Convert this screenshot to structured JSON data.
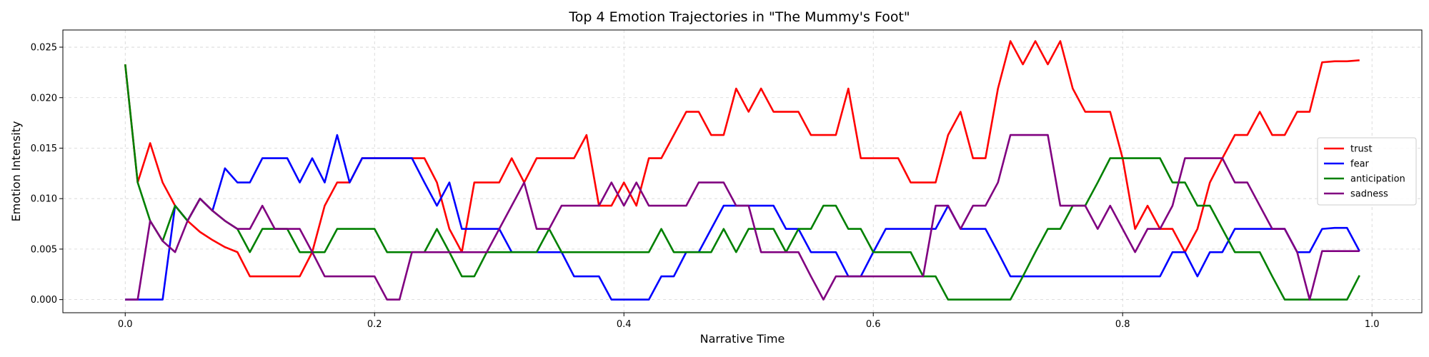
{
  "chart_data": {
    "type": "line",
    "title": "Top 4 Emotion Trajectories in \"The Mummy's Foot\"",
    "xlabel": "Narrative Time",
    "ylabel": "Emotion Intensity",
    "xlim": [
      -0.05,
      1.04
    ],
    "ylim": [
      -0.0013,
      0.0267
    ],
    "x_ticks": [
      0.0,
      0.2,
      0.4,
      0.6,
      0.8,
      1.0
    ],
    "x_tick_labels": [
      "0.0",
      "0.2",
      "0.4",
      "0.6",
      "0.8",
      "1.0"
    ],
    "y_ticks": [
      0.0,
      0.005,
      0.01,
      0.015,
      0.02,
      0.025
    ],
    "y_tick_labels": [
      "0.000",
      "0.005",
      "0.010",
      "0.015",
      "0.020",
      "0.025"
    ],
    "grid": true,
    "legend_position": "center-right",
    "x": [
      0.0,
      0.01,
      0.02,
      0.03,
      0.04,
      0.05,
      0.06,
      0.07,
      0.08,
      0.09,
      0.1,
      0.11,
      0.12,
      0.13,
      0.14,
      0.15,
      0.16,
      0.17,
      0.18,
      0.19,
      0.2,
      0.21,
      0.22,
      0.23,
      0.24,
      0.25,
      0.26,
      0.27,
      0.28,
      0.29,
      0.3,
      0.31,
      0.32,
      0.33,
      0.34,
      0.35,
      0.36,
      0.37,
      0.38,
      0.39,
      0.4,
      0.41,
      0.42,
      0.43,
      0.44,
      0.45,
      0.46,
      0.47,
      0.48,
      0.49,
      0.5,
      0.51,
      0.52,
      0.53,
      0.54,
      0.55,
      0.56,
      0.57,
      0.58,
      0.59,
      0.6,
      0.61,
      0.62,
      0.63,
      0.64,
      0.65,
      0.66,
      0.67,
      0.68,
      0.69,
      0.7,
      0.71,
      0.72,
      0.73,
      0.74,
      0.75,
      0.76,
      0.77,
      0.78,
      0.79,
      0.8,
      0.81,
      0.82,
      0.83,
      0.84,
      0.85,
      0.86,
      0.87,
      0.88,
      0.89,
      0.9,
      0.91,
      0.92,
      0.93,
      0.94,
      0.95,
      0.96,
      0.97,
      0.98,
      0.99
    ],
    "series": [
      {
        "name": "trust",
        "color": "#ff0000",
        "values": [
          0.0233,
          0.0116,
          0.0155,
          0.0116,
          0.0093,
          0.0078,
          0.0067,
          0.0059,
          0.0052,
          0.0047,
          0.0023,
          0.0023,
          0.0023,
          0.0023,
          0.0023,
          0.0047,
          0.0093,
          0.0116,
          0.0116,
          0.014,
          0.014,
          0.014,
          0.014,
          0.014,
          0.014,
          0.0116,
          0.007,
          0.0047,
          0.0116,
          0.0116,
          0.0116,
          0.014,
          0.0116,
          0.014,
          0.014,
          0.014,
          0.014,
          0.0163,
          0.0093,
          0.0093,
          0.0116,
          0.0093,
          0.014,
          0.014,
          0.0163,
          0.0186,
          0.0186,
          0.0163,
          0.0163,
          0.0209,
          0.0186,
          0.0209,
          0.0186,
          0.0186,
          0.0186,
          0.0163,
          0.0163,
          0.0163,
          0.0209,
          0.014,
          0.014,
          0.014,
          0.014,
          0.0116,
          0.0116,
          0.0116,
          0.0163,
          0.0186,
          0.014,
          0.014,
          0.0209,
          0.0256,
          0.0233,
          0.0256,
          0.0233,
          0.0256,
          0.0209,
          0.0186,
          0.0186,
          0.0186,
          0.014,
          0.007,
          0.0093,
          0.007,
          0.007,
          0.0047,
          0.007,
          0.0116,
          0.014,
          0.0163,
          0.0163,
          0.0186,
          0.0163,
          0.0163,
          0.0186,
          0.0186,
          0.0235,
          0.0236,
          0.0236,
          0.0237
        ]
      },
      {
        "name": "fear",
        "color": "#0000ff",
        "values": [
          0.0,
          0.0,
          0.0,
          0.0,
          0.0093,
          0.0078,
          0.01,
          0.0088,
          0.013,
          0.0116,
          0.0116,
          0.014,
          0.014,
          0.014,
          0.0116,
          0.014,
          0.0116,
          0.0163,
          0.0116,
          0.014,
          0.014,
          0.014,
          0.014,
          0.014,
          0.0116,
          0.0093,
          0.0116,
          0.007,
          0.007,
          0.007,
          0.007,
          0.0047,
          0.0047,
          0.0047,
          0.0047,
          0.0047,
          0.0023,
          0.0023,
          0.0023,
          0.0,
          0.0,
          0.0,
          0.0,
          0.0023,
          0.0023,
          0.0047,
          0.0047,
          0.007,
          0.0093,
          0.0093,
          0.0093,
          0.0093,
          0.0093,
          0.007,
          0.007,
          0.0047,
          0.0047,
          0.0047,
          0.0023,
          0.0023,
          0.0047,
          0.007,
          0.007,
          0.007,
          0.007,
          0.007,
          0.0093,
          0.007,
          0.007,
          0.007,
          0.0047,
          0.0023,
          0.0023,
          0.0023,
          0.0023,
          0.0023,
          0.0023,
          0.0023,
          0.0023,
          0.0023,
          0.0023,
          0.0023,
          0.0023,
          0.0023,
          0.0047,
          0.0047,
          0.0023,
          0.0047,
          0.0047,
          0.007,
          0.007,
          0.007,
          0.007,
          0.007,
          0.0047,
          0.0047,
          0.007,
          0.0071,
          0.0071,
          0.0048
        ]
      },
      {
        "name": "anticipation",
        "color": "#008000",
        "values": [
          0.0233,
          0.0116,
          0.0078,
          0.0058,
          0.0093,
          0.0078,
          0.01,
          0.0088,
          0.0078,
          0.007,
          0.0047,
          0.007,
          0.007,
          0.007,
          0.0047,
          0.0047,
          0.0047,
          0.007,
          0.007,
          0.007,
          0.007,
          0.0047,
          0.0047,
          0.0047,
          0.0047,
          0.007,
          0.0047,
          0.0023,
          0.0023,
          0.0047,
          0.0047,
          0.0047,
          0.0047,
          0.0047,
          0.007,
          0.0047,
          0.0047,
          0.0047,
          0.0047,
          0.0047,
          0.0047,
          0.0047,
          0.0047,
          0.007,
          0.0047,
          0.0047,
          0.0047,
          0.0047,
          0.007,
          0.0047,
          0.007,
          0.007,
          0.007,
          0.0047,
          0.007,
          0.007,
          0.0093,
          0.0093,
          0.007,
          0.007,
          0.0047,
          0.0047,
          0.0047,
          0.0047,
          0.0023,
          0.0023,
          0.0,
          0.0,
          0.0,
          0.0,
          0.0,
          0.0,
          0.0023,
          0.0047,
          0.007,
          0.007,
          0.0093,
          0.0093,
          0.0116,
          0.014,
          0.014,
          0.014,
          0.014,
          0.014,
          0.0116,
          0.0116,
          0.0093,
          0.0093,
          0.007,
          0.0047,
          0.0047,
          0.0047,
          0.0023,
          0.0,
          0.0,
          0.0,
          0.0,
          0.0,
          0.0,
          0.0024
        ]
      },
      {
        "name": "sadness",
        "color": "#800080",
        "values": [
          0.0,
          0.0,
          0.0078,
          0.0058,
          0.0047,
          0.0078,
          0.01,
          0.0088,
          0.0078,
          0.007,
          0.007,
          0.0093,
          0.007,
          0.007,
          0.007,
          0.0047,
          0.0023,
          0.0023,
          0.0023,
          0.0023,
          0.0023,
          0.0,
          0.0,
          0.0047,
          0.0047,
          0.0047,
          0.0047,
          0.0047,
          0.0047,
          0.0047,
          0.007,
          0.0093,
          0.0116,
          0.007,
          0.007,
          0.0093,
          0.0093,
          0.0093,
          0.0093,
          0.0116,
          0.0093,
          0.0116,
          0.0093,
          0.0093,
          0.0093,
          0.0093,
          0.0116,
          0.0116,
          0.0116,
          0.0093,
          0.0093,
          0.0047,
          0.0047,
          0.0047,
          0.0047,
          0.0023,
          0.0,
          0.0023,
          0.0023,
          0.0023,
          0.0023,
          0.0023,
          0.0023,
          0.0023,
          0.0023,
          0.0093,
          0.0093,
          0.007,
          0.0093,
          0.0093,
          0.0116,
          0.0163,
          0.0163,
          0.0163,
          0.0163,
          0.0093,
          0.0093,
          0.0093,
          0.007,
          0.0093,
          0.007,
          0.0047,
          0.007,
          0.007,
          0.0093,
          0.014,
          0.014,
          0.014,
          0.014,
          0.0116,
          0.0116,
          0.0093,
          0.007,
          0.007,
          0.0047,
          0.0,
          0.0048,
          0.0048,
          0.0048,
          0.0048
        ]
      }
    ]
  }
}
